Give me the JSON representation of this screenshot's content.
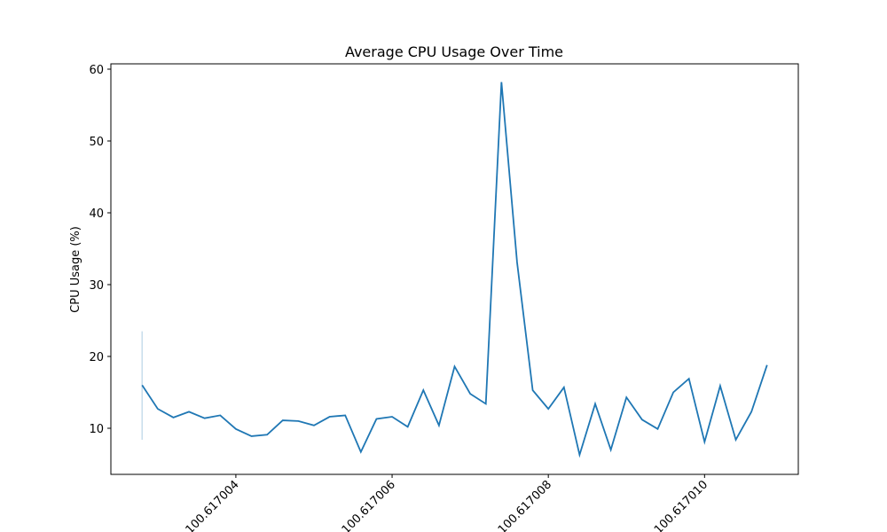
{
  "chart_data": {
    "type": "line",
    "title": "Average CPU Usage Over Time",
    "y_label": "CPU Usage (%)",
    "x": [
      100.6170028,
      100.617003,
      100.6170032,
      100.6170034,
      100.6170036,
      100.6170038,
      100.617004,
      100.6170042,
      100.6170044,
      100.6170046,
      100.6170048,
      100.617005,
      100.6170052,
      100.6170054,
      100.6170056,
      100.6170058,
      100.617006,
      100.6170062,
      100.6170064,
      100.6170066,
      100.6170068,
      100.617007,
      100.6170072,
      100.6170074,
      100.6170076,
      100.6170078,
      100.617008,
      100.6170082,
      100.6170084,
      100.6170086,
      100.6170088,
      100.617009,
      100.6170092,
      100.6170094,
      100.6170096,
      100.6170098,
      100.61701,
      100.6170102,
      100.6170104,
      100.6170106,
      100.6170108
    ],
    "series": [
      {
        "name": "CPU Usage",
        "color": "#1f77b4",
        "values": [
          16.0,
          12.7,
          11.5,
          12.3,
          11.4,
          11.8,
          9.9,
          8.9,
          9.1,
          11.1,
          11.0,
          10.4,
          11.6,
          11.8,
          6.7,
          11.3,
          11.6,
          10.2,
          15.3,
          10.4,
          18.6,
          14.8,
          13.4,
          58.2,
          33.1,
          15.3,
          12.7,
          15.7,
          6.3,
          13.4,
          7.0,
          14.3,
          11.2,
          9.9,
          15.0,
          16.9,
          8.1,
          15.9,
          8.4,
          12.3,
          18.8
        ],
        "lower": [
          8.4,
          null,
          null,
          null,
          null,
          null,
          null,
          null,
          null,
          null,
          null,
          null,
          null,
          null,
          null,
          null,
          null,
          null,
          null,
          null,
          null,
          null,
          null,
          null,
          null,
          null,
          null,
          null,
          null,
          null,
          null,
          null,
          null,
          null,
          null,
          null,
          null,
          null,
          null,
          null,
          null
        ],
        "upper": [
          23.5,
          null,
          null,
          null,
          null,
          null,
          null,
          null,
          null,
          null,
          null,
          null,
          null,
          null,
          null,
          null,
          null,
          null,
          null,
          null,
          null,
          null,
          null,
          null,
          null,
          null,
          null,
          null,
          null,
          null,
          null,
          null,
          null,
          null,
          null,
          null,
          null,
          null,
          null,
          null,
          null
        ]
      }
    ],
    "xlim": [
      100.6170024,
      100.6170112
    ],
    "ylim": [
      3.58,
      60.74
    ],
    "xticks": [
      {
        "value": 100.617004,
        "label": "100.617004"
      },
      {
        "value": 100.617006,
        "label": "100.617006"
      },
      {
        "value": 100.617008,
        "label": "100.617008"
      },
      {
        "value": 100.61701,
        "label": "100.617010"
      }
    ],
    "yticks": [
      10,
      20,
      30,
      40,
      50,
      60
    ]
  }
}
